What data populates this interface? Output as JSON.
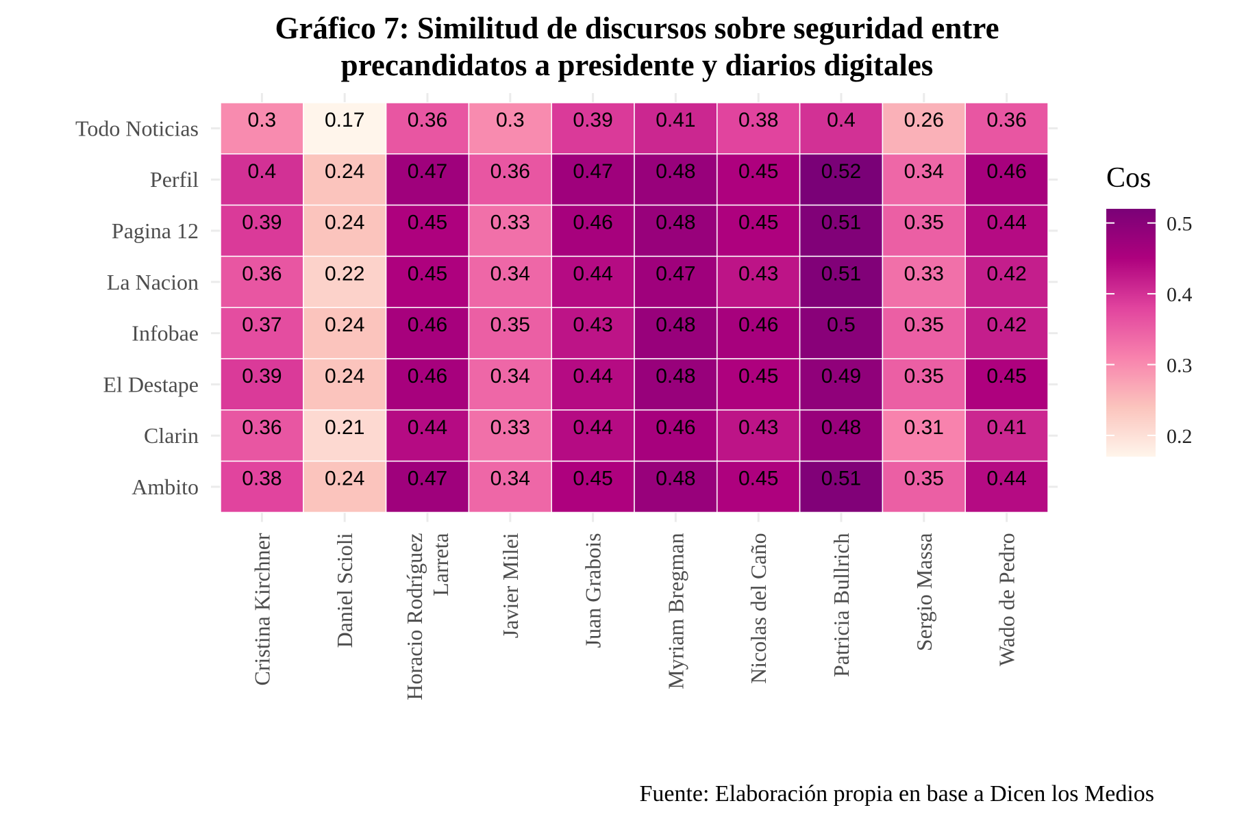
{
  "chart_data": {
    "type": "heatmap",
    "title_lines": [
      "Gráfico 7: Similitud de discursos sobre seguridad entre",
      "precandidatos a presidente y diarios digitales"
    ],
    "caption": "Fuente: Elaboración propia en base a Dicen los Medios",
    "xlabel": "",
    "ylabel": "",
    "columns": [
      {
        "label_lines": [
          "Cristina Kirchner"
        ]
      },
      {
        "label_lines": [
          "Daniel Scioli"
        ]
      },
      {
        "label_lines": [
          "Horacio Rodríguez",
          "Larreta"
        ]
      },
      {
        "label_lines": [
          "Javier Milei"
        ]
      },
      {
        "label_lines": [
          "Juan Grabois"
        ]
      },
      {
        "label_lines": [
          "Myriam Bregman"
        ]
      },
      {
        "label_lines": [
          "Nicolas del Caño"
        ]
      },
      {
        "label_lines": [
          "Patricia Bullrich"
        ]
      },
      {
        "label_lines": [
          "Sergio Massa"
        ]
      },
      {
        "label_lines": [
          "Wado de Pedro"
        ]
      }
    ],
    "rows": [
      "Todo Noticias",
      "Perfil",
      "Pagina 12",
      "La Nacion",
      "Infobae",
      "El Destape",
      "Clarin",
      "Ambito"
    ],
    "values": [
      [
        0.3,
        0.17,
        0.36,
        0.3,
        0.39,
        0.41,
        0.38,
        0.4,
        0.26,
        0.36
      ],
      [
        0.4,
        0.24,
        0.47,
        0.36,
        0.47,
        0.48,
        0.45,
        0.52,
        0.34,
        0.46
      ],
      [
        0.39,
        0.24,
        0.45,
        0.33,
        0.46,
        0.48,
        0.45,
        0.51,
        0.35,
        0.44
      ],
      [
        0.36,
        0.22,
        0.45,
        0.34,
        0.44,
        0.47,
        0.43,
        0.51,
        0.33,
        0.42
      ],
      [
        0.37,
        0.24,
        0.46,
        0.35,
        0.43,
        0.48,
        0.46,
        0.5,
        0.35,
        0.42
      ],
      [
        0.39,
        0.24,
        0.46,
        0.34,
        0.44,
        0.48,
        0.45,
        0.49,
        0.35,
        0.45
      ],
      [
        0.36,
        0.21,
        0.44,
        0.33,
        0.44,
        0.46,
        0.43,
        0.48,
        0.31,
        0.41
      ],
      [
        0.38,
        0.24,
        0.47,
        0.34,
        0.45,
        0.48,
        0.45,
        0.51,
        0.35,
        0.44
      ]
    ],
    "labels": [
      [
        "0.3",
        "0.17",
        "0.36",
        "0.3",
        "0.39",
        "0.41",
        "0.38",
        "0.4",
        "0.26",
        "0.36"
      ],
      [
        "0.4",
        "0.24",
        "0.47",
        "0.36",
        "0.47",
        "0.48",
        "0.45",
        "0.52",
        "0.34",
        "0.46"
      ],
      [
        "0.39",
        "0.24",
        "0.45",
        "0.33",
        "0.46",
        "0.48",
        "0.45",
        "0.51",
        "0.35",
        "0.44"
      ],
      [
        "0.36",
        "0.22",
        "0.45",
        "0.34",
        "0.44",
        "0.47",
        "0.43",
        "0.51",
        "0.33",
        "0.42"
      ],
      [
        "0.37",
        "0.24",
        "0.46",
        "0.35",
        "0.43",
        "0.48",
        "0.46",
        "0.5",
        "0.35",
        "0.42"
      ],
      [
        "0.39",
        "0.24",
        "0.46",
        "0.34",
        "0.44",
        "0.48",
        "0.45",
        "0.49",
        "0.35",
        "0.45"
      ],
      [
        "0.36",
        "0.21",
        "0.44",
        "0.33",
        "0.44",
        "0.46",
        "0.43",
        "0.48",
        "0.31",
        "0.41"
      ],
      [
        "0.38",
        "0.24",
        "0.47",
        "0.34",
        "0.45",
        "0.48",
        "0.45",
        "0.51",
        "0.35",
        "0.44"
      ]
    ],
    "legend": {
      "title": "Cos",
      "placement": "right",
      "range": [
        0.17,
        0.52
      ],
      "ticks": [
        0.2,
        0.3,
        0.4,
        0.5
      ],
      "tick_labels": [
        "0.2",
        "0.3",
        "0.4",
        "0.5"
      ]
    },
    "color_scale": {
      "low": "#fff5eb",
      "stops": [
        "#fff5eb",
        "#fbc4bd",
        "#f882ad",
        "#e1449e",
        "#ae017e",
        "#7a0177"
      ]
    },
    "grid": true
  }
}
